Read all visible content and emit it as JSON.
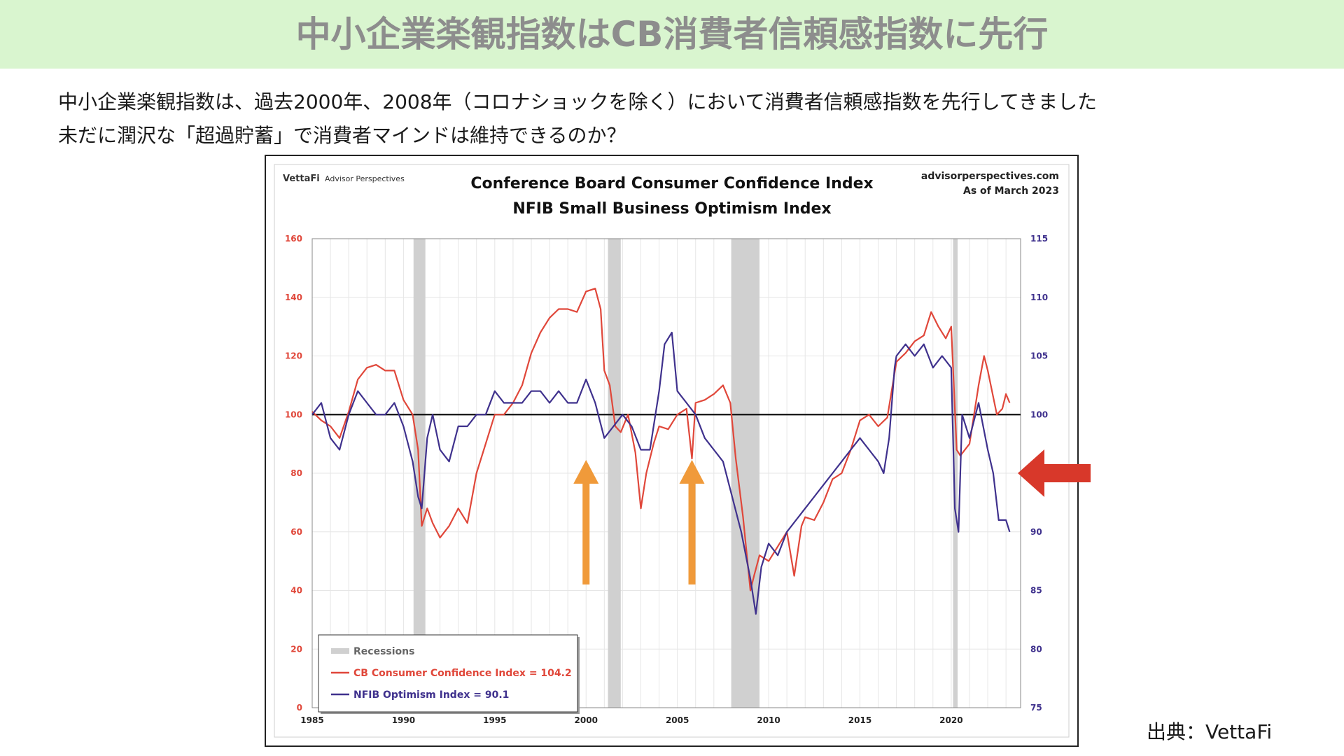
{
  "header": {
    "title": "中小企業楽観指数はCB消費者信頼感指数に先行"
  },
  "description": {
    "line1": "中小企業楽観指数は、過去2000年、2008年（コロナショックを除く）において消費者信頼感指数を先行してきました",
    "line2": "未だに潤沢な「超過貯蓄」で消費者マインドは維持できるのか？"
  },
  "source": "出典：VettaFi",
  "colors": {
    "cb": "#e0473a",
    "nfib": "#3f318d",
    "recession": "#d0d0d0",
    "arrow_orange": "#f09a3a",
    "arrow_red": "#d8382a",
    "banner": "#d9f5cf"
  },
  "chart_data": {
    "type": "line",
    "brand": "VettaFi",
    "brand_sub": "Advisor Perspectives",
    "title": "Conference Board Consumer Confidence Index",
    "subtitle": "NFIB Small Business Optimism Index",
    "site": "advisorperspectives.com",
    "as_of": "As of March 2023",
    "x_ticks": [
      1985,
      1990,
      1995,
      2000,
      2005,
      2010,
      2015,
      2020
    ],
    "xlim": [
      1985,
      2023.8
    ],
    "y_left": {
      "lim": [
        0,
        160
      ],
      "ticks": [
        0,
        20,
        40,
        60,
        80,
        100,
        120,
        140,
        160
      ]
    },
    "y_right": {
      "lim": [
        75,
        115
      ],
      "ticks": [
        75,
        80,
        85,
        90,
        95,
        100,
        105,
        110,
        115
      ]
    },
    "reference_line_left": 100,
    "recessions": [
      [
        1990.55,
        1991.2
      ],
      [
        2001.2,
        2001.9
      ],
      [
        2007.95,
        2009.5
      ],
      [
        2020.1,
        2020.35
      ]
    ],
    "legend": {
      "recessions": "Recessions",
      "cb": "CB Consumer Confidence Index = 104.2",
      "nfib": "NFIB Optimism Index = 90.1"
    },
    "series": [
      {
        "name": "CB Consumer Confidence Index",
        "axis": "left",
        "x": [
          1985.0,
          1985.5,
          1986.0,
          1986.5,
          1987.0,
          1987.5,
          1988.0,
          1988.5,
          1989.0,
          1989.5,
          1990.0,
          1990.5,
          1990.8,
          1991.0,
          1991.3,
          1991.6,
          1992.0,
          1992.5,
          1993.0,
          1993.5,
          1994.0,
          1994.5,
          1995.0,
          1995.5,
          1996.0,
          1996.5,
          1997.0,
          1997.5,
          1998.0,
          1998.5,
          1999.0,
          1999.5,
          2000.0,
          2000.5,
          2000.8,
          2001.0,
          2001.3,
          2001.6,
          2001.9,
          2002.3,
          2002.7,
          2003.0,
          2003.3,
          2003.7,
          2004.0,
          2004.5,
          2005.0,
          2005.5,
          2005.8,
          2006.0,
          2006.5,
          2007.0,
          2007.5,
          2007.9,
          2008.2,
          2008.6,
          2009.0,
          2009.2,
          2009.5,
          2010.0,
          2010.5,
          2011.0,
          2011.4,
          2011.8,
          2012.0,
          2012.5,
          2013.0,
          2013.5,
          2014.0,
          2014.5,
          2015.0,
          2015.5,
          2016.0,
          2016.5,
          2017.0,
          2017.5,
          2018.0,
          2018.5,
          2018.9,
          2019.3,
          2019.7,
          2020.0,
          2020.3,
          2020.5,
          2021.0,
          2021.5,
          2021.8,
          2022.0,
          2022.5,
          2022.8,
          2023.0,
          2023.2
        ],
        "values": [
          101,
          98,
          96,
          92,
          101,
          112,
          116,
          117,
          115,
          115,
          105,
          100,
          88,
          62,
          68,
          63,
          58,
          62,
          68,
          63,
          80,
          90,
          100,
          100,
          104,
          110,
          121,
          128,
          133,
          136,
          136,
          135,
          142,
          143,
          136,
          115,
          110,
          96,
          94,
          100,
          87,
          68,
          80,
          90,
          96,
          95,
          100,
          102,
          85,
          104,
          105,
          107,
          110,
          104,
          85,
          65,
          40,
          45,
          52,
          50,
          55,
          60,
          45,
          62,
          65,
          64,
          70,
          78,
          80,
          88,
          98,
          100,
          96,
          99,
          118,
          121,
          125,
          127,
          135,
          130,
          126,
          130,
          88,
          86,
          90,
          110,
          120,
          115,
          100,
          102,
          107,
          104
        ]
      },
      {
        "name": "NFIB Optimism Index",
        "axis": "right",
        "x": [
          1985.0,
          1985.5,
          1986.0,
          1986.5,
          1987.0,
          1987.5,
          1988.0,
          1988.5,
          1989.0,
          1989.5,
          1990.0,
          1990.5,
          1990.8,
          1991.0,
          1991.3,
          1991.6,
          1992.0,
          1992.5,
          1993.0,
          1993.5,
          1994.0,
          1994.5,
          1995.0,
          1995.5,
          1996.0,
          1996.5,
          1997.0,
          1997.5,
          1998.0,
          1998.5,
          1999.0,
          1999.5,
          2000.0,
          2000.5,
          2001.0,
          2001.5,
          2002.0,
          2002.5,
          2003.0,
          2003.5,
          2004.0,
          2004.3,
          2004.7,
          2005.0,
          2005.5,
          2006.0,
          2006.5,
          2007.0,
          2007.5,
          2008.0,
          2008.5,
          2009.0,
          2009.3,
          2009.6,
          2010.0,
          2010.5,
          2011.0,
          2011.5,
          2012.0,
          2012.5,
          2013.0,
          2013.5,
          2014.0,
          2014.5,
          2015.0,
          2015.5,
          2016.0,
          2016.3,
          2016.6,
          2016.9,
          2017.0,
          2017.5,
          2018.0,
          2018.5,
          2019.0,
          2019.5,
          2020.0,
          2020.2,
          2020.4,
          2020.6,
          2021.0,
          2021.5,
          2022.0,
          2022.3,
          2022.6,
          2023.0,
          2023.2
        ],
        "values": [
          100,
          101,
          98,
          97,
          100,
          102,
          101,
          100,
          100,
          101,
          99,
          96,
          93,
          92,
          98,
          100,
          97,
          96,
          99,
          99,
          100,
          100,
          102,
          101,
          101,
          101,
          102,
          102,
          101,
          102,
          101,
          101,
          103,
          101,
          98,
          99,
          100,
          99,
          97,
          97,
          102,
          106,
          107,
          102,
          101,
          100,
          98,
          97,
          96,
          93,
          90,
          86,
          83,
          87,
          89,
          88,
          90,
          91,
          92,
          93,
          94,
          95,
          96,
          97,
          98,
          97,
          96,
          95,
          98,
          104,
          105,
          106,
          105,
          106,
          104,
          105,
          104,
          92,
          90,
          100,
          98,
          101,
          97,
          95,
          91,
          91,
          90
        ]
      }
    ],
    "annotations": [
      {
        "type": "up-arrow",
        "x": 2000
      },
      {
        "type": "up-arrow",
        "x": 2005.8
      }
    ]
  }
}
